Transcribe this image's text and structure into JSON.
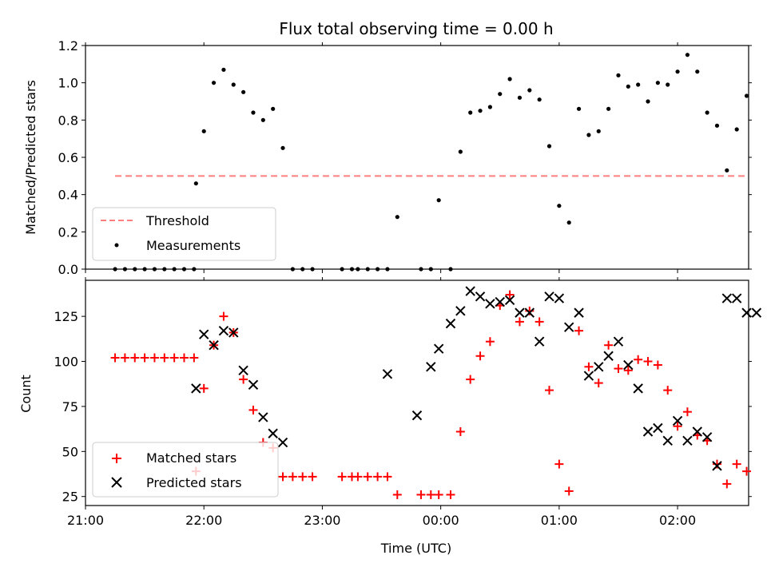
{
  "figure_title": "Flux total observing time = 0.00 h",
  "colors": {
    "threshold": "#ff7f7f",
    "measurement": "#000000",
    "matched": "#ff0000",
    "predicted": "#000000"
  },
  "chart_data": [
    {
      "type": "scatter",
      "title": "Flux total observing time = 0.00 h",
      "xlabel": "",
      "ylabel": "Matched/Predicted stars",
      "xlim": [
        "21:00",
        "02:36"
      ],
      "ylim": [
        0,
        1.2
      ],
      "x_ticks": [
        "21:00",
        "22:00",
        "23:00",
        "00:00",
        "01:00",
        "02:00"
      ],
      "y_ticks": [
        "0.0",
        "0.2",
        "0.4",
        "0.6",
        "0.8",
        "1.0",
        "1.2"
      ],
      "tick_labels_x_visible": false,
      "grid": false,
      "legend": "lower-left",
      "legend_entries": [
        "Threshold",
        "Measurements"
      ],
      "series": [
        {
          "name": "Threshold",
          "style": "dashed-line",
          "x": [
            "21:15",
            "02:35"
          ],
          "y": [
            0.5,
            0.5
          ]
        },
        {
          "name": "Measurements",
          "style": "dot",
          "x": [
            "21:15",
            "21:20",
            "21:25",
            "21:30",
            "21:35",
            "21:40",
            "21:45",
            "21:50",
            "21:55",
            "21:56",
            "22:00",
            "22:05",
            "22:10",
            "22:15",
            "22:20",
            "22:25",
            "22:30",
            "22:35",
            "22:40",
            "22:45",
            "22:50",
            "22:55",
            "23:10",
            "23:15",
            "23:18",
            "23:23",
            "23:28",
            "23:33",
            "23:38",
            "23:50",
            "23:55",
            "23:59",
            "00:05",
            "00:10",
            "00:15",
            "00:20",
            "00:25",
            "00:30",
            "00:35",
            "00:40",
            "00:45",
            "00:50",
            "00:55",
            "01:00",
            "01:05",
            "01:10",
            "01:15",
            "01:20",
            "01:25",
            "01:30",
            "01:35",
            "01:40",
            "01:45",
            "01:50",
            "01:55",
            "02:00",
            "02:05",
            "02:10",
            "02:15",
            "02:20",
            "02:25",
            "02:30",
            "02:35"
          ],
          "y": [
            0,
            0,
            0,
            0,
            0,
            0,
            0,
            0,
            0,
            0.46,
            0.74,
            1.0,
            1.07,
            0.99,
            0.95,
            0.84,
            0.8,
            0.86,
            0.65,
            0,
            0,
            0,
            0,
            0,
            0,
            0,
            0,
            0,
            0.28,
            0,
            0,
            0.37,
            0,
            0.63,
            0.84,
            0.85,
            0.87,
            0.94,
            1.02,
            0.92,
            0.96,
            0.91,
            0.66,
            0.34,
            0.25,
            0.86,
            0.72,
            0.74,
            0.86,
            1.04,
            0.98,
            0.99,
            0.9,
            1.0,
            0.99,
            1.06,
            1.15,
            1.06,
            0.84,
            0.77,
            0.53,
            0.75,
            0.93
          ]
        }
      ]
    },
    {
      "type": "scatter",
      "xlabel": "Time (UTC)",
      "ylabel": "Count",
      "xlim": [
        "21:00",
        "02:36"
      ],
      "ylim": [
        20,
        145
      ],
      "x_ticks": [
        "21:00",
        "22:00",
        "23:00",
        "00:00",
        "01:00",
        "02:00"
      ],
      "y_ticks": [
        "25",
        "50",
        "75",
        "100",
        "125"
      ],
      "grid": false,
      "legend": "lower-left",
      "legend_entries": [
        "Matched stars",
        "Predicted stars"
      ],
      "series": [
        {
          "name": "Matched stars",
          "marker": "plus",
          "x": [
            "21:15",
            "21:20",
            "21:25",
            "21:30",
            "21:35",
            "21:40",
            "21:45",
            "21:50",
            "21:55",
            "21:56",
            "22:00",
            "22:05",
            "22:10",
            "22:15",
            "22:20",
            "22:25",
            "22:30",
            "22:35",
            "22:40",
            "22:45",
            "22:50",
            "22:55",
            "23:10",
            "23:15",
            "23:18",
            "23:23",
            "23:28",
            "23:33",
            "23:38",
            "23:50",
            "23:55",
            "23:59",
            "00:05",
            "00:10",
            "00:15",
            "00:20",
            "00:25",
            "00:30",
            "00:35",
            "00:40",
            "00:45",
            "00:50",
            "00:55",
            "01:00",
            "01:05",
            "01:10",
            "01:15",
            "01:20",
            "01:25",
            "01:30",
            "01:35",
            "01:40",
            "01:45",
            "01:50",
            "01:55",
            "02:00",
            "02:05",
            "02:10",
            "02:15",
            "02:20",
            "02:25",
            "02:30",
            "02:35"
          ],
          "y": [
            102,
            102,
            102,
            102,
            102,
            102,
            102,
            102,
            102,
            39,
            85,
            109,
            125,
            116,
            90,
            73,
            55,
            52,
            36,
            36,
            36,
            36,
            36,
            36,
            36,
            36,
            36,
            36,
            26,
            26,
            26,
            26,
            26,
            61,
            90,
            103,
            111,
            131,
            137,
            122,
            128,
            122,
            84,
            43,
            28,
            117,
            97,
            88,
            109,
            96,
            95,
            101,
            100,
            98,
            84,
            64,
            72,
            59,
            56,
            43,
            32,
            43,
            39
          ]
        },
        {
          "name": "Predicted stars",
          "marker": "x",
          "x": [
            "21:56",
            "22:00",
            "22:05",
            "22:10",
            "22:15",
            "22:20",
            "22:25",
            "22:30",
            "22:35",
            "22:40",
            "23:33",
            "23:48",
            "23:55",
            "23:59",
            "00:05",
            "00:10",
            "00:15",
            "00:20",
            "00:25",
            "00:30",
            "00:35",
            "00:40",
            "00:45",
            "00:50",
            "00:55",
            "01:00",
            "01:05",
            "01:10",
            "01:15",
            "01:20",
            "01:25",
            "01:30",
            "01:35",
            "01:40",
            "01:45",
            "01:50",
            "01:55",
            "02:00",
            "02:05",
            "02:10",
            "02:15",
            "02:20",
            "02:25",
            "02:30",
            "02:35",
            "02:40"
          ],
          "y": [
            85,
            115,
            109,
            117,
            116,
            95,
            87,
            69,
            60,
            55,
            93,
            70,
            97,
            107,
            121,
            128,
            139,
            136,
            132,
            133,
            134,
            127,
            127,
            111,
            136,
            135,
            119,
            127,
            92,
            97,
            103,
            111,
            98,
            85,
            61,
            63,
            56,
            67,
            56,
            61,
            58,
            42,
            135,
            135,
            127,
            127
          ]
        }
      ]
    }
  ]
}
